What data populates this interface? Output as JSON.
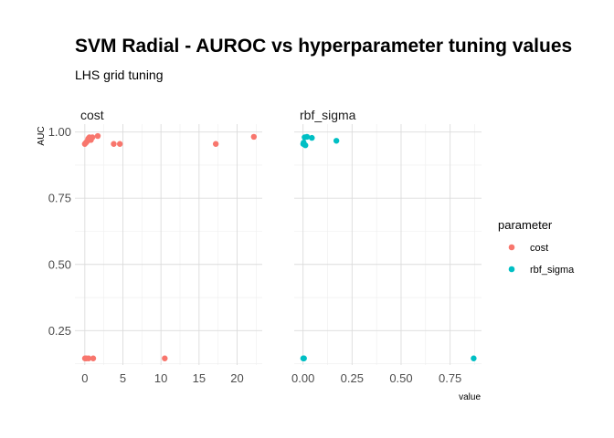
{
  "chart_data": {
    "type": "scatter",
    "title": "SVM Radial - AUROC vs hyperparameter tuning values",
    "subtitle": "LHS grid tuning",
    "xlabel": "value",
    "ylabel": "AUC",
    "ylim": [
      0.12,
      1.03
    ],
    "yticks": [
      0.25,
      0.5,
      0.75,
      1.0
    ],
    "ytick_labels": [
      "0.25",
      "0.50",
      "0.75",
      "1.00"
    ],
    "grid": true,
    "legend": {
      "title": "parameter",
      "placement": "right"
    },
    "panels": [
      {
        "strip": "cost",
        "series": "cost",
        "xlim": [
          -1.3,
          23.3
        ],
        "xticks": [
          0,
          5,
          10,
          15,
          20
        ],
        "xtick_labels": [
          "0",
          "5",
          "10",
          "15",
          "20"
        ],
        "points": [
          {
            "x": 0.0,
            "y": 0.955
          },
          {
            "x": 0.15,
            "y": 0.96
          },
          {
            "x": 0.3,
            "y": 0.965
          },
          {
            "x": 0.45,
            "y": 0.975
          },
          {
            "x": 0.6,
            "y": 0.98
          },
          {
            "x": 0.8,
            "y": 0.97
          },
          {
            "x": 1.0,
            "y": 0.98
          },
          {
            "x": 1.7,
            "y": 0.985
          },
          {
            "x": 3.8,
            "y": 0.955
          },
          {
            "x": 4.6,
            "y": 0.955
          },
          {
            "x": 17.2,
            "y": 0.955
          },
          {
            "x": 22.2,
            "y": 0.982
          },
          {
            "x": 0.02,
            "y": 0.145
          },
          {
            "x": 0.2,
            "y": 0.145
          },
          {
            "x": 0.5,
            "y": 0.145
          },
          {
            "x": 1.1,
            "y": 0.145
          },
          {
            "x": 10.5,
            "y": 0.145
          }
        ]
      },
      {
        "strip": "rbf_sigma",
        "series": "rbf_sigma",
        "xlim": [
          -0.045,
          0.91
        ],
        "xticks": [
          0.0,
          0.25,
          0.5,
          0.75
        ],
        "xtick_labels": [
          "0.00",
          "0.25",
          "0.50",
          "0.75"
        ],
        "points": [
          {
            "x": 0.001,
            "y": 0.955
          },
          {
            "x": 0.003,
            "y": 0.96
          },
          {
            "x": 0.008,
            "y": 0.98
          },
          {
            "x": 0.012,
            "y": 0.95
          },
          {
            "x": 0.02,
            "y": 0.982
          },
          {
            "x": 0.045,
            "y": 0.978
          },
          {
            "x": 0.17,
            "y": 0.967
          },
          {
            "x": 0.001,
            "y": 0.145
          },
          {
            "x": 0.005,
            "y": 0.145
          },
          {
            "x": 0.87,
            "y": 0.145
          }
        ]
      }
    ],
    "series_colors": {
      "cost": "#F8766D",
      "rbf_sigma": "#00BFC4"
    },
    "legend_entries": [
      {
        "label": "cost",
        "color": "#F8766D"
      },
      {
        "label": "rbf_sigma",
        "color": "#00BFC4"
      }
    ]
  }
}
